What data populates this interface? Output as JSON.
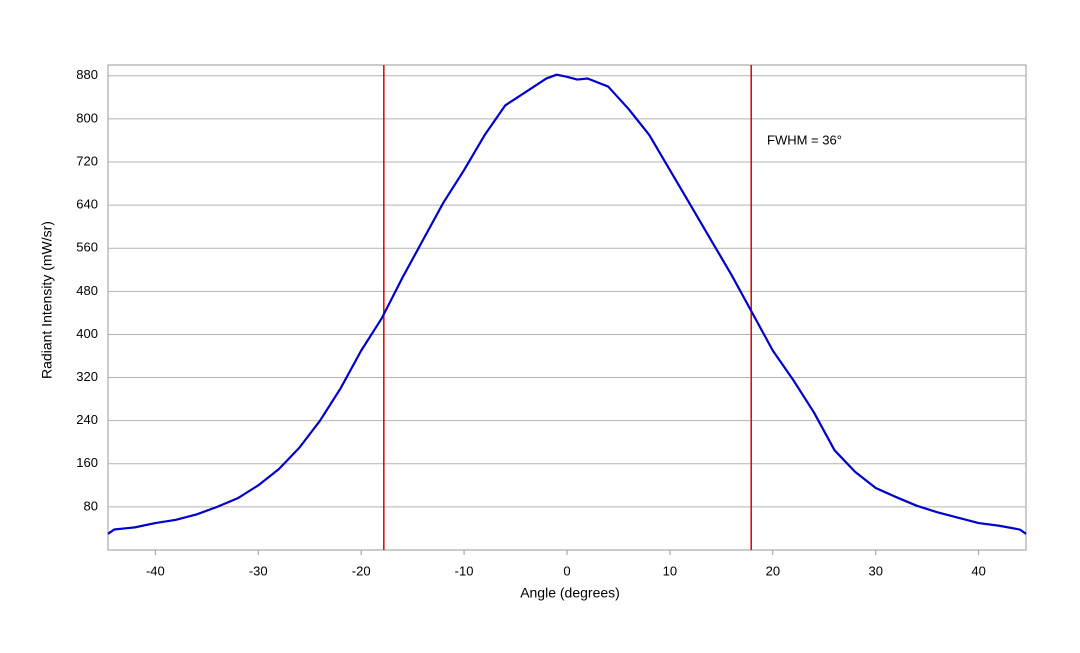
{
  "chart_data": {
    "type": "line",
    "xlabel": "Angle (degrees)",
    "ylabel": "Radiant Intensity (mW/sr)",
    "x": [
      -44.6,
      -44,
      -42,
      -40,
      -38,
      -36,
      -34,
      -32,
      -30,
      -28,
      -26,
      -24,
      -22,
      -20,
      -18,
      -16,
      -14,
      -12,
      -10,
      -8,
      -6,
      -4,
      -2,
      -1,
      0,
      1,
      2,
      4,
      6,
      8,
      10,
      12,
      14,
      16,
      18,
      20,
      22,
      24,
      26,
      28,
      30,
      32,
      34,
      36,
      38,
      40,
      42,
      44,
      44.6
    ],
    "series": [
      {
        "color": "#0000cc",
        "values": [
          30,
          38,
          42,
          50,
          56,
          66,
          80,
          96,
          120,
          150,
          190,
          240,
          300,
          370,
          430,
          505,
          575,
          645,
          705,
          770,
          825,
          850,
          875,
          882,
          878,
          873,
          875,
          860,
          818,
          770,
          705,
          640,
          575,
          510,
          440,
          370,
          315,
          255,
          185,
          145,
          115,
          98,
          82,
          70,
          60,
          50,
          45,
          38,
          30
        ]
      }
    ],
    "vlines": [
      {
        "x": -17.8,
        "color": "#e00000"
      },
      {
        "x": 17.9,
        "color": "#e00000"
      }
    ],
    "annotations": [
      {
        "text": "FWHM = 36°"
      }
    ],
    "xlim": [
      -44.6,
      44.6
    ],
    "ylim": [
      0,
      900
    ],
    "xticks": [
      -40,
      -30,
      -20,
      -10,
      0,
      10,
      20,
      30,
      40
    ],
    "yticks": [
      80,
      160,
      240,
      320,
      400,
      480,
      560,
      640,
      720,
      800,
      880
    ],
    "grid": true
  }
}
